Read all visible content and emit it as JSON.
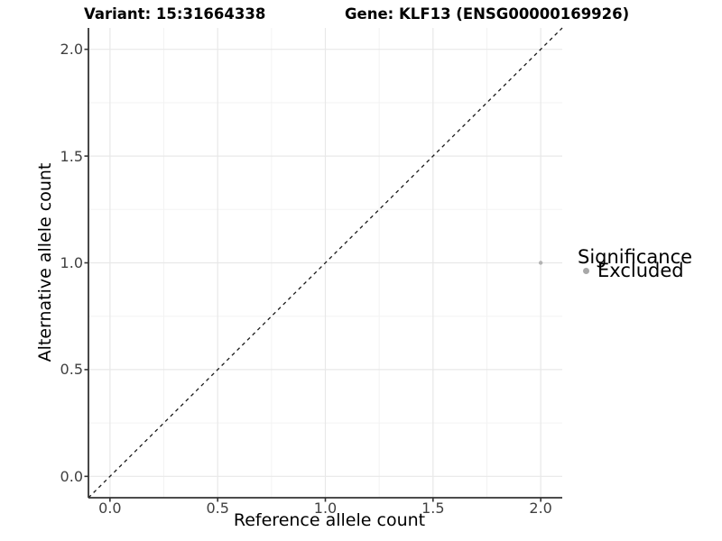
{
  "titles": {
    "variant": "Variant: 15:31664338",
    "gene": "Gene: KLF13 (ENSG00000169926)"
  },
  "axes": {
    "x_label": "Reference allele count",
    "y_label": "Alternative allele count"
  },
  "legend": {
    "title": "Significance",
    "items": [
      {
        "label": "Excluded",
        "color": "#a8a8a8"
      }
    ]
  },
  "colors": {
    "axis_line": "#333333",
    "tick_mark": "#333333",
    "tick_text": "#404040",
    "grid_major": "#e8e8e8",
    "grid_minor": "#f3f3f3",
    "dashed_line": "#1a1a1a",
    "point": "#b3b3b3",
    "background": "#ffffff"
  },
  "chart_data": {
    "type": "scatter",
    "title": "Variant: 15:31664338    Gene: KLF13 (ENSG00000169926)",
    "xlabel": "Reference allele count",
    "ylabel": "Alternative allele count",
    "xlim": [
      -0.1,
      2.1
    ],
    "ylim": [
      -0.1,
      2.1
    ],
    "x_ticks": [
      0.0,
      0.5,
      1.0,
      1.5,
      2.0
    ],
    "y_ticks": [
      0.0,
      0.5,
      1.0,
      1.5,
      2.0
    ],
    "x_tick_labels": [
      "0.0",
      "0.5",
      "1.0",
      "1.5",
      "2.0"
    ],
    "y_tick_labels": [
      "0.0",
      "0.5",
      "1.0",
      "1.5",
      "2.0"
    ],
    "grid_major": [
      0.0,
      0.5,
      1.0,
      1.5,
      2.0
    ],
    "grid_minor": [
      0.25,
      0.75,
      1.25,
      1.75
    ],
    "grid": "on",
    "legend_position": "right",
    "series": [
      {
        "name": "Excluded",
        "color": "#b3b3b3",
        "points": [
          {
            "x": 2.0,
            "y": 1.0
          }
        ]
      }
    ],
    "reference_line": {
      "kind": "identity",
      "slope": 1,
      "intercept": 0,
      "style": "dashed",
      "color": "#1a1a1a"
    }
  }
}
